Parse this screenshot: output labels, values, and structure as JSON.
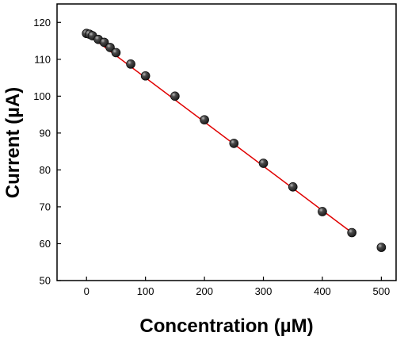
{
  "chart_data": {
    "type": "scatter",
    "xlabel": "Concentration (µM)",
    "ylabel": "Current (µA)",
    "xlim": [
      -50,
      525
    ],
    "ylim": [
      50,
      125
    ],
    "x_ticks": [
      0,
      100,
      200,
      300,
      400,
      500
    ],
    "y_ticks": [
      50,
      60,
      70,
      80,
      90,
      100,
      110,
      120
    ],
    "grid": false,
    "series": [
      {
        "type": "scatter",
        "marker_color": "#1a1a1a",
        "points": [
          {
            "x": 0,
            "y": 117.0
          },
          {
            "x": 5,
            "y": 116.8
          },
          {
            "x": 10,
            "y": 116.4
          },
          {
            "x": 20,
            "y": 115.4
          },
          {
            "x": 30,
            "y": 114.6
          },
          {
            "x": 40,
            "y": 113.2
          },
          {
            "x": 50,
            "y": 111.8
          },
          {
            "x": 75,
            "y": 108.7
          },
          {
            "x": 100,
            "y": 105.5
          },
          {
            "x": 150,
            "y": 100.0
          },
          {
            "x": 200,
            "y": 93.6
          },
          {
            "x": 250,
            "y": 87.2
          },
          {
            "x": 300,
            "y": 81.8
          },
          {
            "x": 350,
            "y": 75.4
          },
          {
            "x": 400,
            "y": 68.7
          },
          {
            "x": 450,
            "y": 63.0
          },
          {
            "x": 500,
            "y": 59.0
          }
        ]
      },
      {
        "type": "fit-line",
        "color": "#e00000",
        "x": [
          0,
          450
        ],
        "y": [
          117.0,
          63.0
        ]
      }
    ]
  }
}
